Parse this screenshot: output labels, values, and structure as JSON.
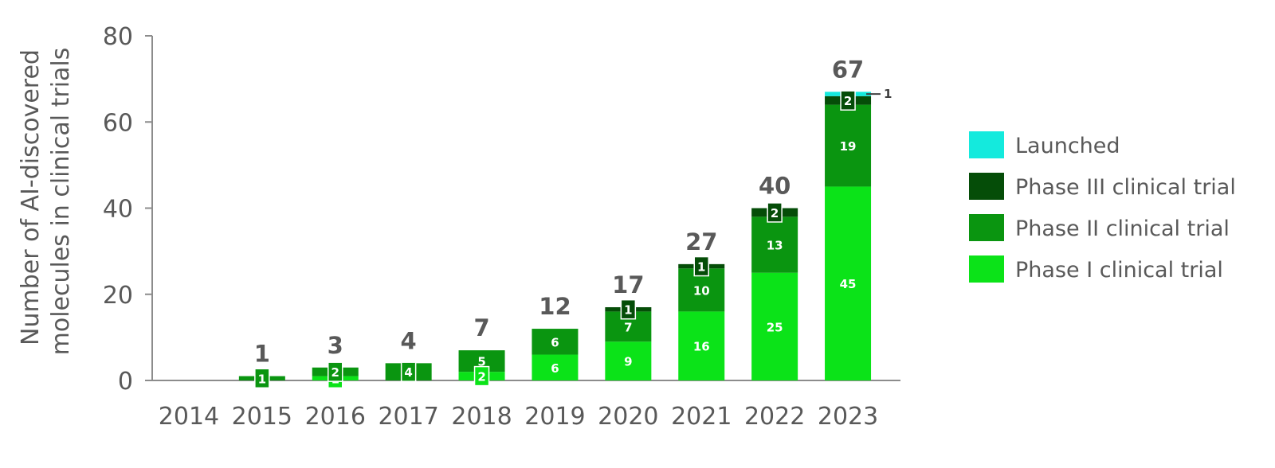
{
  "chart_data": {
    "type": "bar",
    "stacked": true,
    "ylabel_lines": [
      "Number of AI-discovered",
      "molecules in clinical trials"
    ],
    "categories": [
      "2014",
      "2015",
      "2016",
      "2017",
      "2018",
      "2019",
      "2020",
      "2021",
      "2022",
      "2023"
    ],
    "ylim": [
      0,
      80
    ],
    "yticks": [
      "0",
      "20",
      "40",
      "60",
      "80"
    ],
    "totals": [
      "",
      "1",
      "3",
      "4",
      "7",
      "12",
      "17",
      "27",
      "40",
      "67"
    ],
    "legend_position": "right",
    "series": [
      {
        "name": "Phase I clinical trial",
        "color": "#0be318",
        "values": [
          0,
          0,
          1,
          0,
          2,
          6,
          9,
          16,
          25,
          45
        ]
      },
      {
        "name": "Phase II clinical trial",
        "color": "#0a9510",
        "values": [
          0,
          1,
          2,
          4,
          5,
          6,
          7,
          10,
          13,
          19
        ]
      },
      {
        "name": "Phase III clinical trial",
        "color": "#054d08",
        "values": [
          0,
          0,
          0,
          0,
          0,
          0,
          1,
          1,
          2,
          2
        ]
      },
      {
        "name": "Launched",
        "color": "#14eadd",
        "values": [
          0,
          0,
          0,
          0,
          0,
          0,
          0,
          0,
          0,
          1
        ]
      }
    ],
    "legend_order": [
      "Launched",
      "Phase III clinical trial",
      "Phase II clinical trial",
      "Phase I clinical trial"
    ]
  }
}
